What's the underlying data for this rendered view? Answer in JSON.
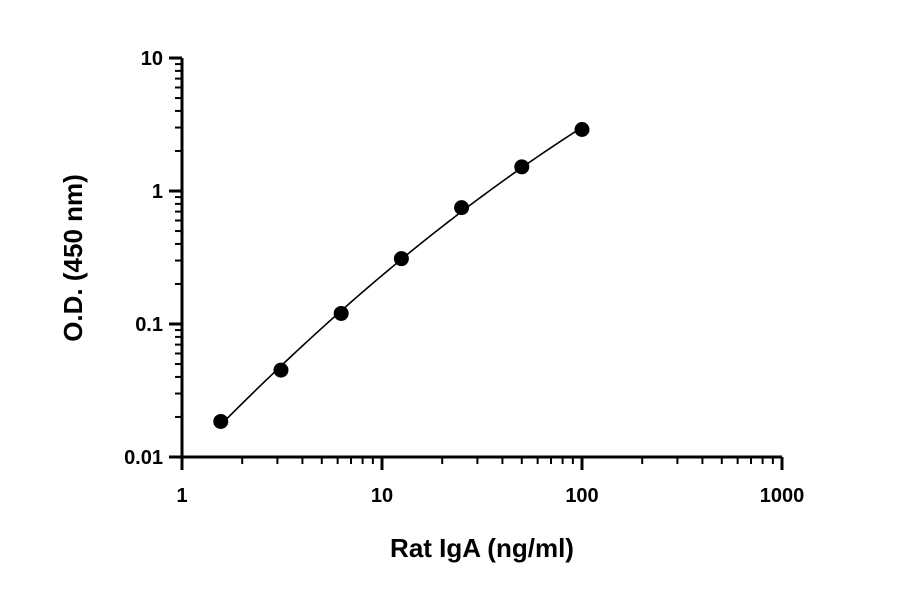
{
  "chart_data": {
    "type": "scatter",
    "xscale": "log",
    "yscale": "log",
    "xlim": [
      1,
      1000
    ],
    "ylim": [
      0.01,
      10
    ],
    "xlabel": "Rat IgA (ng/ml)",
    "ylabel": "O.D. (450 nm)",
    "x_ticks": [
      "1",
      "10",
      "100",
      "1000"
    ],
    "y_ticks": [
      "0.01",
      "0.1",
      "1",
      "10"
    ],
    "grid": false,
    "legend": "none",
    "series": [
      {
        "x": [
          1.5625,
          3.125,
          6.25,
          12.5,
          25,
          50,
          100
        ],
        "y": [
          0.0185,
          0.045,
          0.12,
          0.31,
          0.75,
          1.52,
          2.9
        ],
        "color": "#000000",
        "fit_curve": true
      }
    ]
  }
}
